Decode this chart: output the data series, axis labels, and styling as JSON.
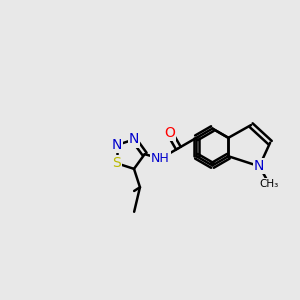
{
  "bg_color": "#e8e8e8",
  "bond_color": "#000000",
  "bond_width": 1.8,
  "atom_colors": {
    "N": "#0000cc",
    "S": "#bbbb00",
    "O": "#ff0000",
    "C": "#000000"
  },
  "figsize": [
    3.0,
    3.0
  ],
  "dpi": 100,
  "xlim": [
    0,
    10
  ],
  "ylim": [
    0,
    10
  ]
}
